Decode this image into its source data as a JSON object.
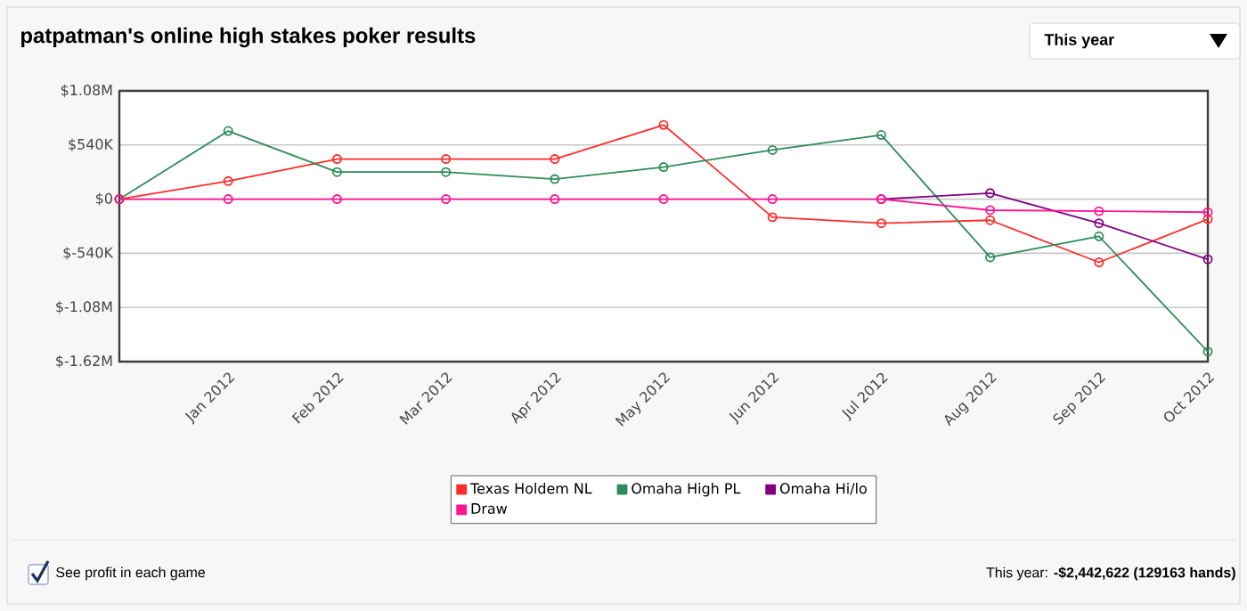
{
  "chart_data": {
    "type": "line",
    "title": "patpatman's online high stakes poker results",
    "categories": [
      null,
      "Jan 2012",
      "Feb 2012",
      "Mar 2012",
      "Apr 2012",
      "May 2012",
      "Jun 2012",
      "Jul 2012",
      "Aug 2012",
      "Sep 2012",
      "Oct 2012"
    ],
    "series": [
      {
        "name": "Texas Holdem NL",
        "color": "#ff2a2a",
        "values": [
          0,
          180000,
          400000,
          400000,
          400000,
          740000,
          -180000,
          -240000,
          -210000,
          -630000,
          -200000
        ]
      },
      {
        "name": "Omaha High PL",
        "color": "#2e8b57",
        "values": [
          0,
          680000,
          270000,
          270000,
          200000,
          320000,
          490000,
          640000,
          -580000,
          -370000,
          -1520000
        ]
      },
      {
        "name": "Omaha Hi/lo",
        "color": "#800080",
        "values": [
          null,
          null,
          null,
          null,
          null,
          null,
          null,
          0,
          60000,
          -240000,
          -600000
        ]
      },
      {
        "name": "Draw",
        "color": "#ff1493",
        "values": [
          0,
          0,
          0,
          0,
          0,
          0,
          0,
          0,
          -110000,
          -120000,
          -130000
        ]
      }
    ],
    "ylim": [
      -1620000,
      1080000
    ],
    "yticks": [
      {
        "value": -1620000,
        "label": "$-1.62M"
      },
      {
        "value": -1080000,
        "label": "$-1.08M"
      },
      {
        "value": -540000,
        "label": "$-540K"
      },
      {
        "value": 0,
        "label": "$0"
      },
      {
        "value": 540000,
        "label": "$540K"
      },
      {
        "value": 1080000,
        "label": "$1.08M"
      }
    ],
    "grid": "y",
    "legend": "bottom",
    "marker": "circle",
    "line_style": "solid",
    "annotations": [
      "This year",
      "See profit in each game",
      "This year: **-$2,442,622 (129163 hands)**"
    ]
  }
}
